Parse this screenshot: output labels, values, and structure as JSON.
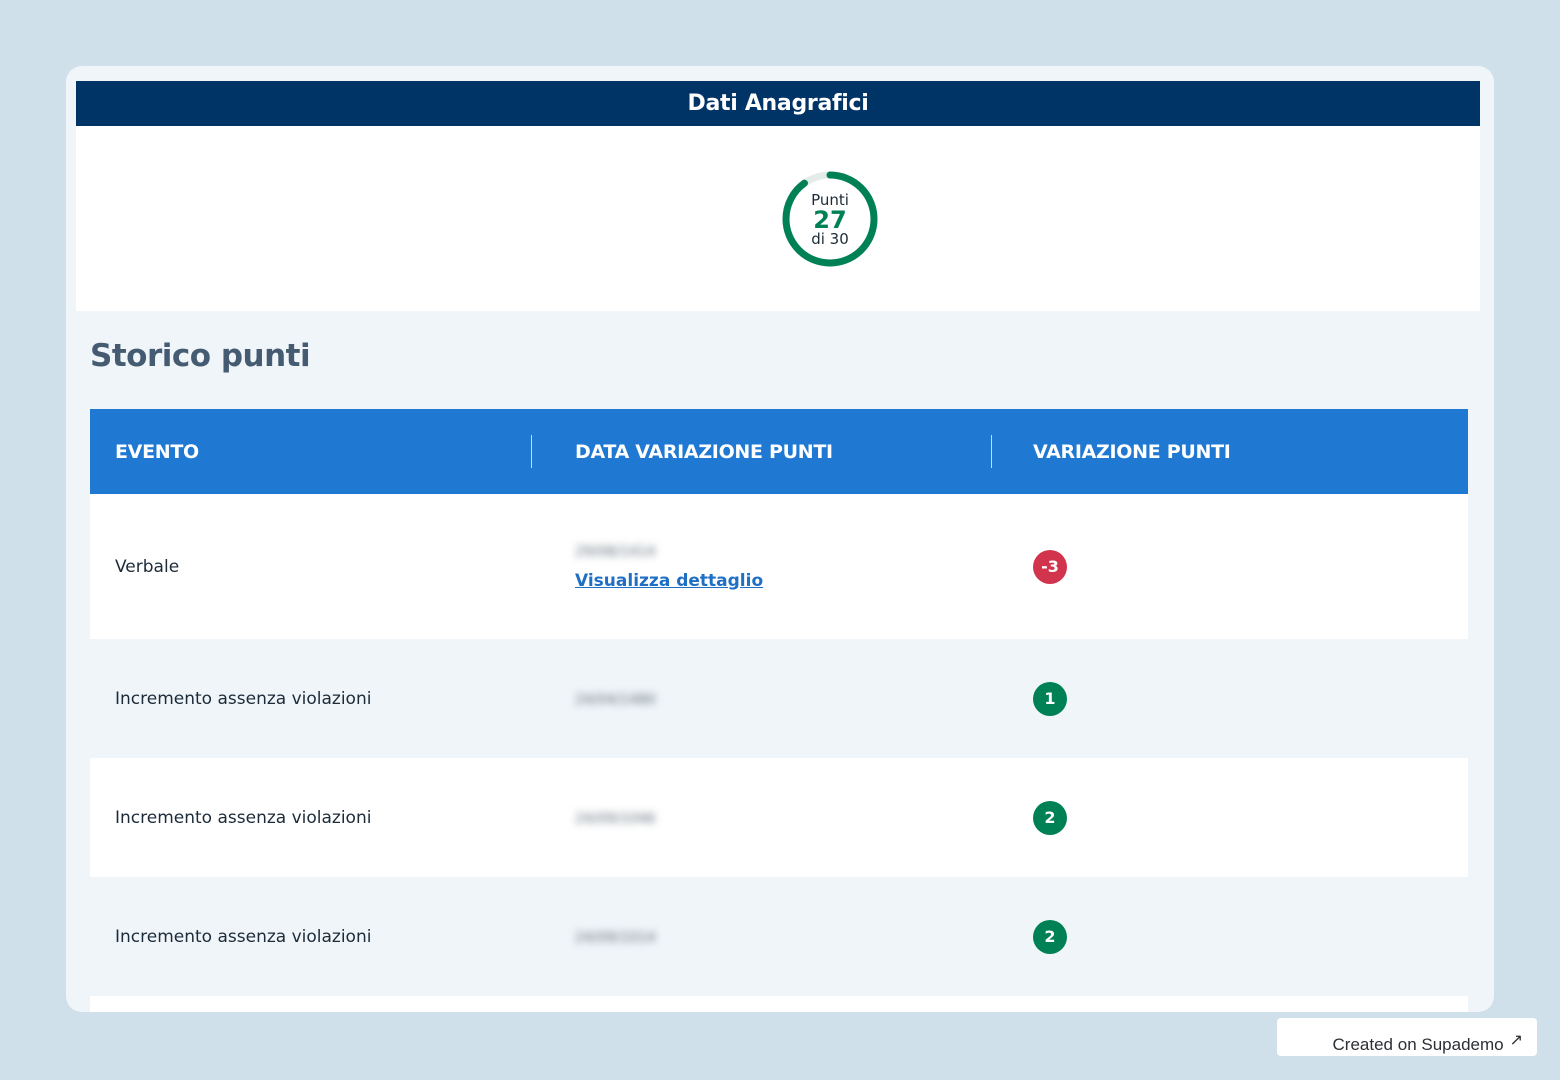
{
  "header": {
    "title": "Dati Anagrafici"
  },
  "points": {
    "label": "Punti",
    "value": "27",
    "of_label": "di 30",
    "fraction": 0.9,
    "color": "#008055"
  },
  "history": {
    "title": "Storico punti",
    "columns": [
      "EVENTO",
      "DATA VARIAZIONE PUNTI",
      "VARIAZIONE PUNTI"
    ],
    "rows": [
      {
        "event": "Verbale",
        "date": "29/08/1414",
        "link": "Visualizza dettaglio",
        "change": "-3"
      },
      {
        "event": "Incremento assenza violazioni",
        "date": "24/04/1480",
        "change": "1"
      },
      {
        "event": "Incremento assenza violazioni",
        "date": "24/09/1046",
        "change": "2"
      },
      {
        "event": "Incremento assenza violazioni",
        "date": "24/09/1014",
        "change": "2"
      }
    ]
  },
  "colors": {
    "header_bg": "#003366",
    "table_header_bg": "#1f78d1",
    "negative": "#d1344c",
    "positive": "#008055"
  },
  "footer": {
    "label": "Created on Supademo",
    "icon": "external-arrow-icon"
  }
}
